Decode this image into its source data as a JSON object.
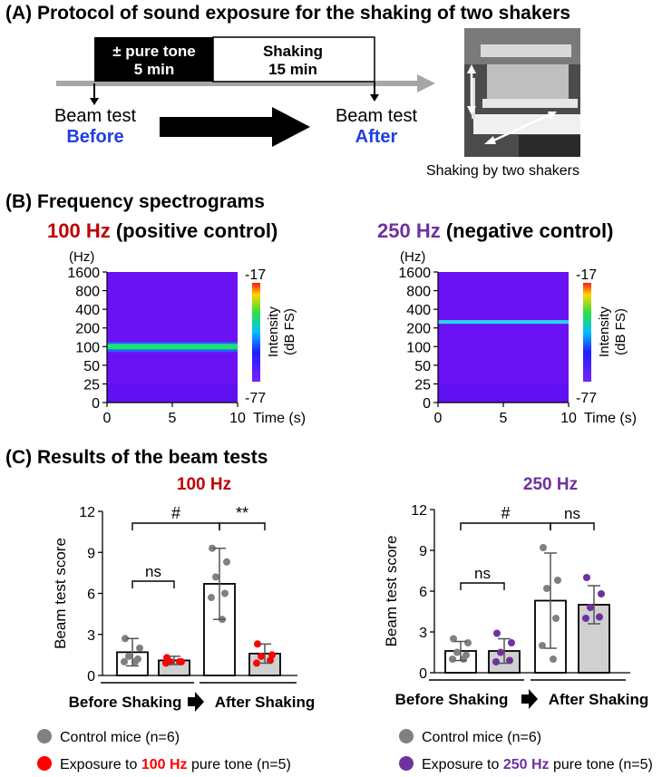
{
  "sectionA": {
    "title": "(A) Protocol of sound exposure for the shaking of two shakers",
    "tone_box": {
      "line1": "± pure tone",
      "line2": "5 min"
    },
    "shaking_box": {
      "line1": "Shaking",
      "line2": "15 min"
    },
    "before": {
      "line1": "Beam test",
      "line2": "Before"
    },
    "after": {
      "line1": "Beam test",
      "line2": "After"
    },
    "photo_caption": "Shaking by two shakers"
  },
  "sectionB": {
    "title": "(B) Frequency spectrograms",
    "left": {
      "freq": "100 Hz",
      "label": " (positive control)",
      "freq_color": "#c00000",
      "line_hz": 100
    },
    "right": {
      "freq": "250 Hz",
      "label": " (negative control)",
      "freq_color": "#7030a0",
      "line_hz": 250
    },
    "y_unit": "(Hz)",
    "y_ticks": [
      "1600",
      "800",
      "400",
      "200",
      "100",
      "50",
      "25",
      "0"
    ],
    "x_ticks": [
      "0",
      "5",
      "10"
    ],
    "x_label": "Time (s)",
    "colorbar": {
      "max": "-17",
      "min": "-77",
      "label1": "Intensity",
      "label2": "(dB FS)"
    }
  },
  "sectionC": {
    "title": "(C) Results of the beam tests",
    "y_label": "Beam test score",
    "y_ticks": [
      "0",
      "3",
      "6",
      "9",
      "12"
    ],
    "before_label": "Before Shaking",
    "after_label": "After Shaking",
    "legend": {
      "control": "Control mice (n=6)",
      "exposure_prefix": "Exposure to ",
      "exposure_suffix": " pure tone (n=5)"
    }
  },
  "chart_data": [
    {
      "type": "bar",
      "title": "100 Hz",
      "title_color": "#c00000",
      "ylabel": "Beam test score",
      "ylim": [
        0,
        12
      ],
      "categories": [
        "Before - Control",
        "Before - 100 Hz",
        "After - Control",
        "After - 100 Hz"
      ],
      "values": [
        1.7,
        1.1,
        6.7,
        1.6
      ],
      "errors": [
        1.0,
        0.3,
        2.6,
        0.7
      ],
      "points": [
        [
          2.7,
          2.0,
          1.4,
          1.2,
          1.0,
          1.0
        ],
        [
          1.3,
          1.0,
          1.0,
          1.0,
          0.9
        ],
        [
          9.3,
          8.3,
          7.2,
          6.0,
          5.7,
          4.1
        ],
        [
          2.3,
          1.5,
          1.4,
          1.1,
          0.9
        ]
      ],
      "bar_colors": [
        "#ffffff",
        "#d0d0d0",
        "#ffffff",
        "#d0d0d0"
      ],
      "point_colors": [
        "#808080",
        "#ff0000",
        "#808080",
        "#ff0000"
      ],
      "annotations": [
        {
          "text": "#",
          "between": [
            0,
            2
          ]
        },
        {
          "text": "**",
          "between": [
            2,
            3
          ]
        },
        {
          "text": "ns",
          "between": [
            0,
            1
          ]
        }
      ]
    },
    {
      "type": "bar",
      "title": "250 Hz",
      "title_color": "#7030a0",
      "ylabel": "Beam test score",
      "ylim": [
        0,
        12
      ],
      "categories": [
        "Before - Control",
        "Before - 250 Hz",
        "After - Control",
        "After - 250 Hz"
      ],
      "values": [
        1.6,
        1.6,
        5.3,
        5.0
      ],
      "errors": [
        0.7,
        0.9,
        3.5,
        1.4
      ],
      "points": [
        [
          2.5,
          2.2,
          1.5,
          1.3,
          1.0,
          1.0
        ],
        [
          2.9,
          2.2,
          1.5,
          0.9,
          0.8
        ],
        [
          9.2,
          6.8,
          6.2,
          4.0,
          2.0,
          1.0
        ],
        [
          7.0,
          5.8,
          4.8,
          4.1,
          4.0
        ]
      ],
      "bar_colors": [
        "#ffffff",
        "#d0d0d0",
        "#ffffff",
        "#d0d0d0"
      ],
      "point_colors": [
        "#808080",
        "#7030a0",
        "#808080",
        "#7030a0"
      ],
      "annotations": [
        {
          "text": "#",
          "between": [
            0,
            2
          ]
        },
        {
          "text": "ns",
          "between": [
            2,
            3
          ]
        },
        {
          "text": "ns",
          "between": [
            0,
            1
          ]
        }
      ]
    }
  ]
}
